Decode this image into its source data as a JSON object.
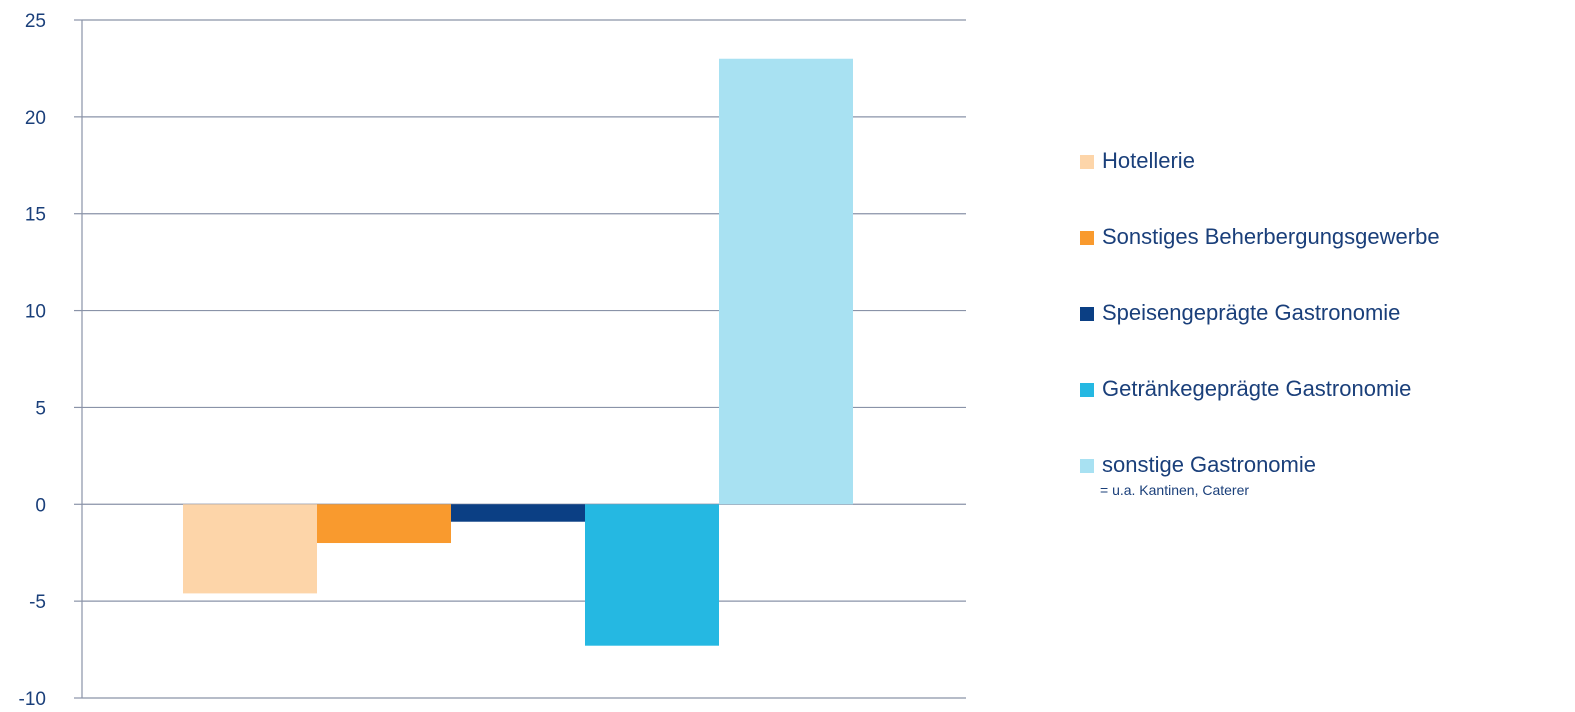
{
  "chart_data": {
    "type": "bar",
    "title": "",
    "xlabel": "",
    "ylabel": "",
    "ylim": [
      -10,
      25
    ],
    "yticks": [
      25,
      20,
      15,
      10,
      5,
      0,
      -5,
      -10
    ],
    "grid": true,
    "legend_position": "right",
    "series": [
      {
        "name": "Hotellerie",
        "value": -4.6,
        "color": "#fdd5a9"
      },
      {
        "name": "Sonstiges Beherbergungsgewerbe",
        "value": -2.0,
        "color": "#f99a2e"
      },
      {
        "name": "Speisengeprägte Gastronomie",
        "value": -0.9,
        "color": "#0b3f84"
      },
      {
        "name": "Getränkegeprägte Gastronomie",
        "value": -7.3,
        "color": "#25b8e2"
      },
      {
        "name": "sonstige Gastronomie",
        "value": 23.0,
        "color": "#a8e1f2",
        "note": "= u.a. Kantinen, Caterer"
      }
    ]
  }
}
